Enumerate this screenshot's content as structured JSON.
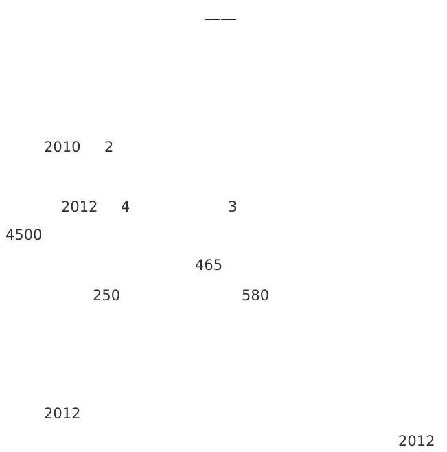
{
  "header": {
    "mark": "——"
  },
  "body": {
    "line1": "2010",
    "line1_b": "2",
    "line2": "2012",
    "line2_b": "4",
    "line2_c": "3",
    "line3": "4500",
    "line4": "465",
    "line5_a": "250",
    "line5_b": "580",
    "line6": "2012"
  },
  "footer": {
    "date": "2012"
  }
}
